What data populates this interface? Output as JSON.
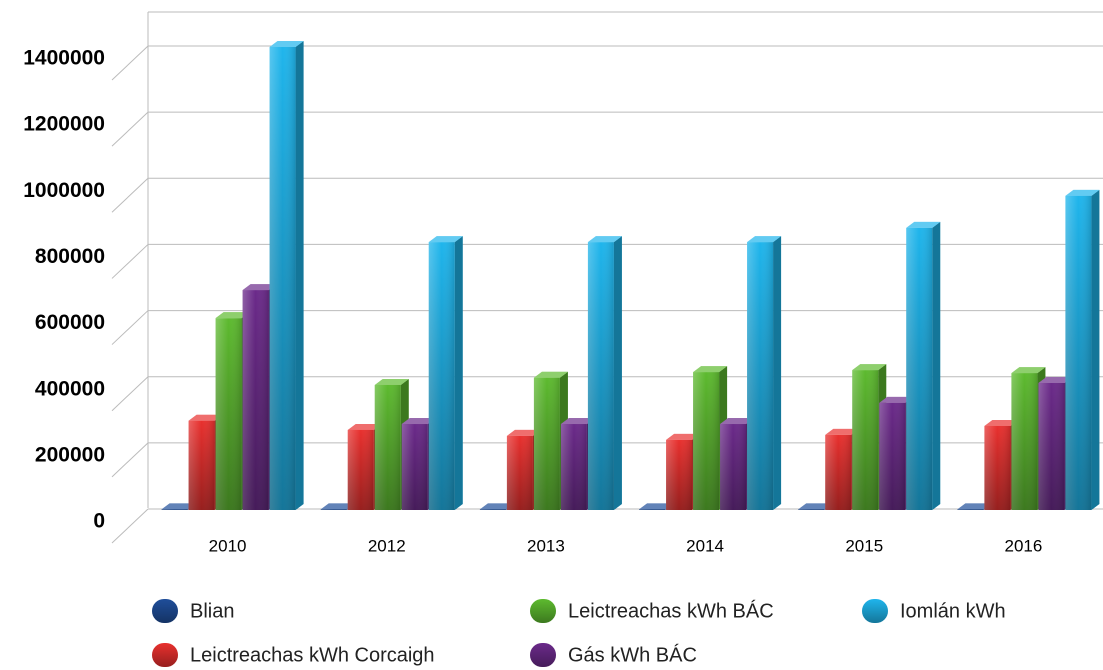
{
  "chart_data": {
    "type": "bar3d",
    "categories": [
      "2010",
      "2012",
      "2013",
      "2014",
      "2015",
      "2016"
    ],
    "series": [
      {
        "name": "Blian",
        "color": "#1f4e9a",
        "values": [
          2010,
          2012,
          2013,
          2014,
          2015,
          2016
        ]
      },
      {
        "name": "Leictreachas kWh Corcaigh",
        "color": "#e8302e",
        "values": [
          270000,
          242000,
          224000,
          212000,
          227000,
          254000
        ]
      },
      {
        "name": "Leictreachas kWh BÁC",
        "color": "#5dba2f",
        "values": [
          580000,
          378000,
          400000,
          417000,
          423000,
          414000
        ]
      },
      {
        "name": "Gás kWh BÁC",
        "color": "#6b2a8a",
        "values": [
          665000,
          260000,
          260000,
          260000,
          324000,
          384000
        ]
      },
      {
        "name": "Iomlán kWh",
        "color": "#1fb5ec",
        "values": [
          1400000,
          810000,
          810000,
          810000,
          853000,
          950000
        ]
      }
    ],
    "ylim": [
      0,
      1400000
    ],
    "yticks": [
      0,
      200000,
      400000,
      600000,
      800000,
      1000000,
      1200000,
      1400000
    ],
    "grid": true
  }
}
